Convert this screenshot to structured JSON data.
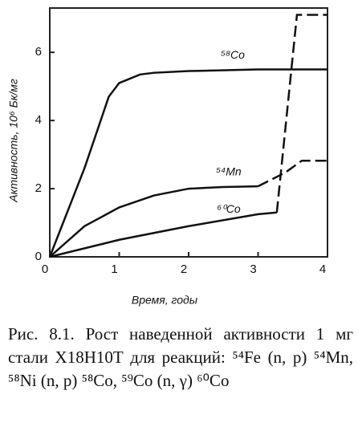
{
  "chart_data": {
    "type": "line",
    "x_label": "Время, годы",
    "y_label": "Активность, 10⁶ Бк/мг",
    "xlim": [
      0,
      4
    ],
    "xticks": [
      0,
      1,
      2,
      3,
      4
    ],
    "ylim": [
      0,
      7.3
    ],
    "yticks": [
      0,
      2,
      4,
      6
    ],
    "grid": false,
    "series": [
      {
        "name": "⁵⁸Co",
        "color": "#111111",
        "dashed_from_x": null,
        "x": [
          0,
          0.5,
          0.85,
          1,
          1.3,
          1.5,
          2,
          3,
          4
        ],
        "values": [
          0,
          2.6,
          4.7,
          5.1,
          5.35,
          5.4,
          5.45,
          5.5,
          5.5
        ]
      },
      {
        "name": "⁵⁴Mn",
        "color": "#111111",
        "dashed_from_x": 3,
        "x": [
          0,
          0.5,
          1,
          1.5,
          2,
          2.5,
          3,
          3.39,
          3.63,
          4
        ],
        "values": [
          0,
          0.9,
          1.45,
          1.8,
          2.0,
          2.05,
          2.07,
          2.47,
          2.82,
          2.82
        ]
      },
      {
        "name": "⁶⁰Co",
        "color": "#111111",
        "dashed_from_x": 3.27,
        "x": [
          0,
          1,
          2,
          3,
          3.27,
          3.56,
          4
        ],
        "values": [
          0,
          0.5,
          0.9,
          1.25,
          1.3,
          7.1,
          7.1
        ]
      }
    ]
  },
  "caption": "Рис. 8.1. Рост наведенной активности 1 мг стали Х18Н10Т для реакций: ⁵⁴Fe (n, p) ⁵⁴Mn, ⁵⁸Ni (n, p) ⁵⁸Co, ⁵⁹Co (n, γ) ⁶⁰Co"
}
